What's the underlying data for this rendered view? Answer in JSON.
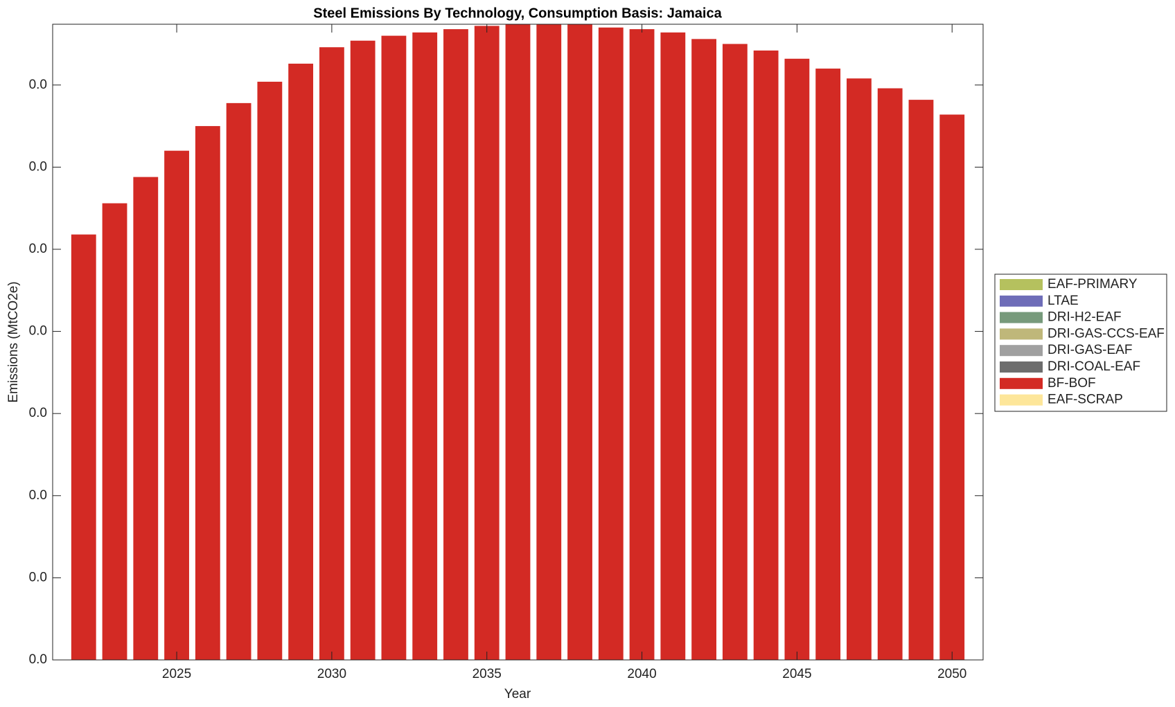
{
  "chart_data": {
    "type": "bar",
    "stacked": true,
    "title": "Steel Emissions By Technology, Consumption Basis: Jamaica",
    "x_label": "Year",
    "y_label": "Emissions (MtCO2e)",
    "x": [
      2022,
      2023,
      2024,
      2025,
      2026,
      2027,
      2028,
      2029,
      2030,
      2031,
      2032,
      2033,
      2034,
      2035,
      2036,
      2037,
      2038,
      2039,
      2040,
      2041,
      2042,
      2043,
      2044,
      2045,
      2046,
      2047,
      2048,
      2049,
      2050
    ],
    "xlim": [
      2021,
      2051
    ],
    "xticks": [
      2025,
      2030,
      2035,
      2040,
      2045,
      2050
    ],
    "ylim": [
      0,
      0.0387
    ],
    "yticks": [
      {
        "value": 0,
        "label": "0.0"
      },
      {
        "value": 0.005,
        "label": "0.0"
      },
      {
        "value": 0.01,
        "label": "0.0"
      },
      {
        "value": 0.015,
        "label": "0.0"
      },
      {
        "value": 0.02,
        "label": "0.0"
      },
      {
        "value": 0.025,
        "label": "0.0"
      },
      {
        "value": 0.03,
        "label": "0.0"
      },
      {
        "value": 0.035,
        "label": "0.0"
      }
    ],
    "grid": false,
    "legend": "right",
    "series": [
      {
        "name": "EAF-PRIMARY",
        "color": "#b5c15e",
        "values": [
          0,
          0,
          0,
          0,
          0,
          0,
          0,
          0,
          0,
          0,
          0,
          0,
          0,
          0,
          0,
          0,
          0,
          0,
          0,
          0,
          0,
          0,
          0,
          0,
          0,
          0,
          0,
          0,
          0
        ]
      },
      {
        "name": "LTAE",
        "color": "#6e6db8",
        "values": [
          0,
          0,
          0,
          0,
          0,
          0,
          0,
          0,
          0,
          0,
          0,
          0,
          0,
          0,
          0,
          0,
          0,
          0,
          0,
          0,
          0,
          0,
          0,
          0,
          0,
          0,
          0,
          0,
          0
        ]
      },
      {
        "name": "DRI-H2-EAF",
        "color": "#779a7b",
        "values": [
          0,
          0,
          0,
          0,
          0,
          0,
          0,
          0,
          0,
          0,
          0,
          0,
          0,
          0,
          0,
          0,
          0,
          0,
          0,
          0,
          0,
          0,
          0,
          0,
          0,
          0,
          0,
          0,
          0
        ]
      },
      {
        "name": "DRI-GAS-CCS-EAF",
        "color": "#bfb77a",
        "values": [
          0,
          0,
          0,
          0,
          0,
          0,
          0,
          0,
          0,
          0,
          0,
          0,
          0,
          0,
          0,
          0,
          0,
          0,
          0,
          0,
          0,
          0,
          0,
          0,
          0,
          0,
          0,
          0,
          0
        ]
      },
      {
        "name": "DRI-GAS-EAF",
        "color": "#a0a0a0",
        "values": [
          0,
          0,
          0,
          0,
          0,
          0,
          0,
          0,
          0,
          0,
          0,
          0,
          0,
          0,
          0,
          0,
          0,
          0,
          0,
          0,
          0,
          0,
          0,
          0,
          0,
          0,
          0,
          0,
          0
        ]
      },
      {
        "name": "DRI-COAL-EAF",
        "color": "#6d6d6d",
        "values": [
          0,
          0,
          0,
          0,
          0,
          0,
          0,
          0,
          0,
          0,
          0,
          0,
          0,
          0,
          0,
          0,
          0,
          0,
          0,
          0,
          0,
          0,
          0,
          0,
          0,
          0,
          0,
          0,
          0
        ]
      },
      {
        "name": "BF-BOF",
        "color": "#d32a24",
        "values": [
          0.0259,
          0.0278,
          0.0294,
          0.031,
          0.0325,
          0.0339,
          0.0352,
          0.0363,
          0.0373,
          0.0377,
          0.038,
          0.0382,
          0.0384,
          0.0386,
          0.0387,
          0.0387,
          0.0387,
          0.0385,
          0.0384,
          0.0382,
          0.0378,
          0.0375,
          0.0371,
          0.0366,
          0.036,
          0.0354,
          0.0348,
          0.0341,
          0.0332
        ]
      },
      {
        "name": "EAF-SCRAP",
        "color": "#fde69a",
        "values": [
          0,
          0,
          0,
          0,
          0,
          0,
          0,
          0,
          0,
          0,
          0,
          0,
          0,
          0,
          0,
          0,
          0,
          0,
          0,
          0,
          0,
          0,
          0,
          0,
          0,
          0,
          0,
          0,
          0
        ]
      }
    ]
  }
}
